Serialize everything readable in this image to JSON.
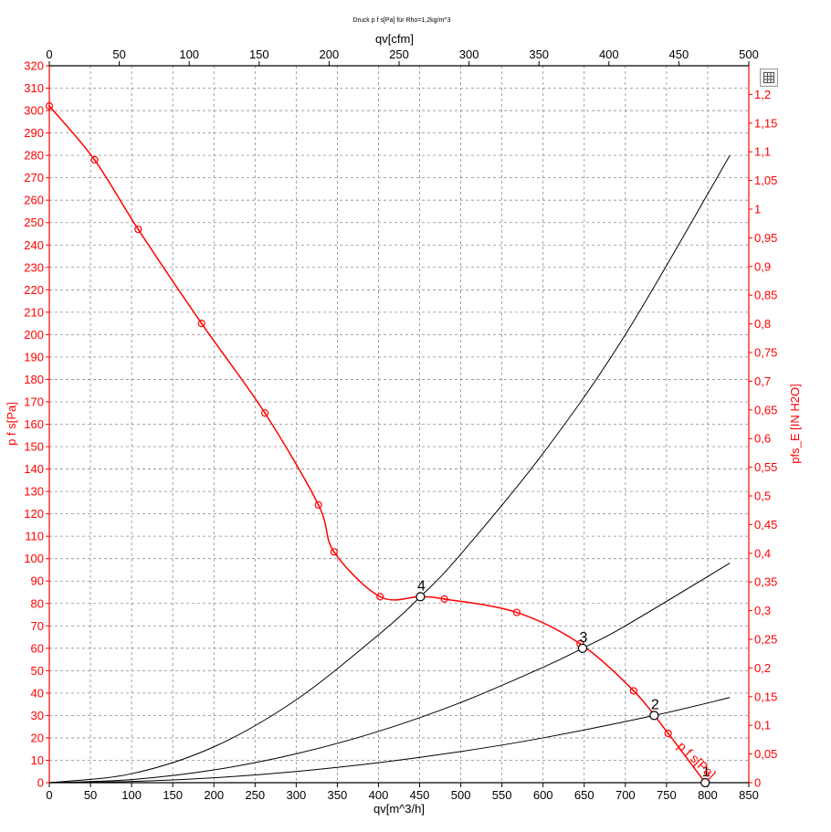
{
  "chart_data": {
    "type": "line",
    "title": "Druck p f s[Pa] für Rho=1,2kg/m^3",
    "xlabel": "qv[m^3/h]",
    "x2label": "qv[cfm]",
    "ylabel": "p f s[Pa]",
    "y2label": "pfs_E [IN H2O]",
    "xlim": [
      0,
      850
    ],
    "ylim": [
      0,
      320
    ],
    "x2lim": [
      0,
      500
    ],
    "y2lim": [
      0,
      1.25
    ],
    "x_ticks": [
      "0",
      "50",
      "100",
      "150",
      "200",
      "250",
      "300",
      "350",
      "400",
      "450",
      "500",
      "550",
      "600",
      "650",
      "700",
      "750",
      "800",
      "850"
    ],
    "x2_ticks": [
      "0",
      "50",
      "100",
      "150",
      "200",
      "250",
      "300",
      "350",
      "400",
      "450",
      "500"
    ],
    "y_ticks": [
      "0",
      "10",
      "20",
      "30",
      "40",
      "50",
      "60",
      "70",
      "80",
      "90",
      "100",
      "110",
      "120",
      "130",
      "140",
      "150",
      "160",
      "170",
      "180",
      "190",
      "200",
      "210",
      "220",
      "230",
      "240",
      "250",
      "260",
      "270",
      "280",
      "290",
      "300",
      "310",
      "320"
    ],
    "y2_ticks": [
      "0",
      "0,05",
      "0,1",
      "0,15",
      "0,2",
      "0,25",
      "0,3",
      "0,35",
      "0,4",
      "0,45",
      "0,5",
      "0,55",
      "0,6",
      "0,65",
      "0,7",
      "0,75",
      "0,8",
      "0,85",
      "0,9",
      "0,95",
      "1",
      "1,05",
      "1,1",
      "1,15",
      "1,2"
    ],
    "grid": true,
    "series": [
      {
        "name": "p f s[Pa]",
        "color": "#ff0000",
        "x": [
          0,
          55,
          108,
          185,
          262,
          327,
          346,
          402,
          450,
          480,
          568,
          645,
          710,
          752,
          797
        ],
        "y": [
          302,
          278,
          247,
          205,
          165,
          124,
          103,
          83,
          83,
          82,
          76,
          62,
          41,
          22,
          0
        ],
        "markers_x": [
          0,
          55,
          108,
          185,
          262,
          327,
          346,
          402,
          480,
          568,
          645,
          710,
          752,
          797
        ],
        "markers_y": [
          302,
          278,
          247,
          205,
          165,
          124,
          103,
          83,
          82,
          76,
          62,
          41,
          22,
          0
        ]
      }
    ],
    "system_curves": [
      {
        "label": "4",
        "x": [
          0,
          100,
          200,
          300,
          400,
          451,
          500,
          600,
          700,
          827
        ],
        "y": [
          0,
          4,
          16,
          37,
          66,
          83,
          102,
          147,
          200,
          280
        ]
      },
      {
        "label": "3",
        "x": [
          0,
          100,
          200,
          300,
          400,
          500,
          600,
          648,
          700,
          827
        ],
        "y": [
          0,
          1.4,
          5.7,
          12.9,
          22.9,
          35.8,
          51.5,
          60,
          70,
          98
        ]
      },
      {
        "label": "2",
        "x": [
          0,
          100,
          200,
          300,
          400,
          500,
          600,
          735,
          827
        ],
        "y": [
          0,
          0.55,
          2.2,
          5,
          8.9,
          13.9,
          20,
          30,
          38
        ]
      },
      {
        "label": "1",
        "x": [
          0,
          797
        ],
        "y": [
          0,
          0
        ]
      }
    ],
    "operating_points": [
      {
        "label": "4",
        "x": 451,
        "y": 83
      },
      {
        "label": "3",
        "x": 648,
        "y": 60
      },
      {
        "label": "2",
        "x": 735,
        "y": 30
      },
      {
        "label": "1",
        "x": 797,
        "y": 0
      }
    ]
  }
}
